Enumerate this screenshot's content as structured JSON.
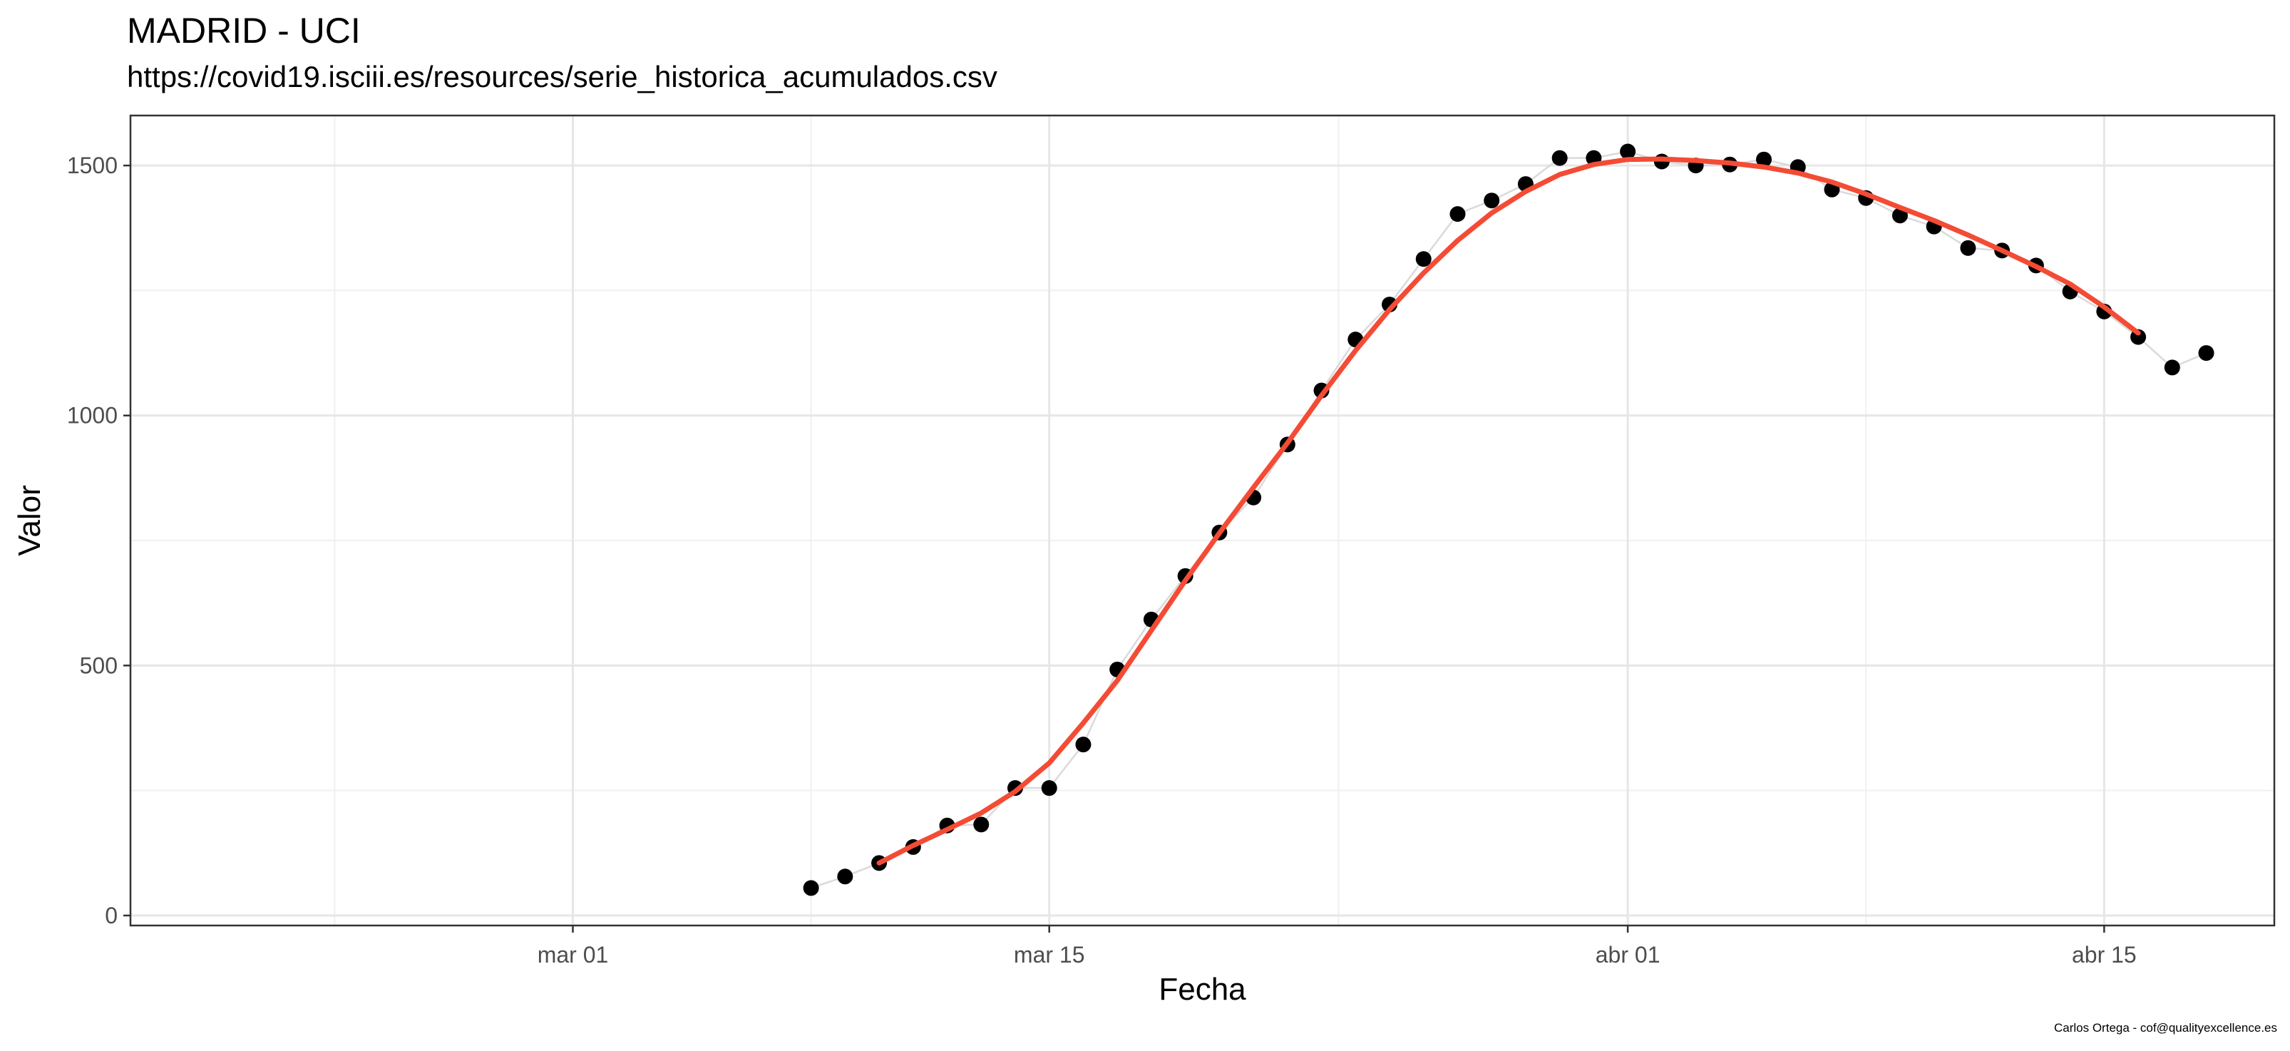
{
  "chart_data": {
    "type": "line",
    "title": "MADRID - UCI",
    "subtitle": "https://covid19.isciii.es/resources/serie_historica_acumulados.csv",
    "caption": "Carlos Ortega - cof@qualityexcellence.es",
    "xlabel": "Fecha",
    "ylabel": "Valor",
    "x_ticks": [
      {
        "date": "2020-03-01",
        "label": "mar 01"
      },
      {
        "date": "2020-03-15",
        "label": "mar 15"
      },
      {
        "date": "2020-04-01",
        "label": "abr 01"
      },
      {
        "date": "2020-04-15",
        "label": "abr 15"
      }
    ],
    "xlim": [
      "2020-02-17",
      "2020-04-20"
    ],
    "y_ticks": [
      0,
      500,
      1000,
      1500
    ],
    "ylim": [
      -20,
      1600
    ],
    "grid": true,
    "series": [
      {
        "style": "points",
        "color": "#000000",
        "x": [
          "2020-03-08",
          "2020-03-09",
          "2020-03-10",
          "2020-03-11",
          "2020-03-12",
          "2020-03-13",
          "2020-03-14",
          "2020-03-15",
          "2020-03-16",
          "2020-03-17",
          "2020-03-18",
          "2020-03-19",
          "2020-03-20",
          "2020-03-21",
          "2020-03-22",
          "2020-03-23",
          "2020-03-24",
          "2020-03-25",
          "2020-03-26",
          "2020-03-27",
          "2020-03-28",
          "2020-03-29",
          "2020-03-30",
          "2020-03-31",
          "2020-04-01",
          "2020-04-02",
          "2020-04-03",
          "2020-04-04",
          "2020-04-05",
          "2020-04-06",
          "2020-04-07",
          "2020-04-08",
          "2020-04-09",
          "2020-04-10",
          "2020-04-11",
          "2020-04-12",
          "2020-04-13",
          "2020-04-14",
          "2020-04-15",
          "2020-04-16",
          "2020-04-17",
          "2020-04-18"
        ],
        "values": [
          55,
          78,
          105,
          137,
          180,
          182,
          255,
          255,
          342,
          492,
          592,
          679,
          766,
          836,
          942,
          1050,
          1152,
          1222,
          1313,
          1403,
          1430,
          1463,
          1515,
          1515,
          1528,
          1508,
          1500,
          1502,
          1512,
          1497,
          1452,
          1435,
          1400,
          1378,
          1335,
          1330,
          1300,
          1248,
          1208,
          1157,
          1096,
          1125
        ]
      },
      {
        "style": "smooth-line",
        "color": "#f44b35",
        "x": [
          "2020-03-10",
          "2020-03-11",
          "2020-03-12",
          "2020-03-13",
          "2020-03-14",
          "2020-03-15",
          "2020-03-16",
          "2020-03-17",
          "2020-03-18",
          "2020-03-19",
          "2020-03-20",
          "2020-03-21",
          "2020-03-22",
          "2020-03-23",
          "2020-03-24",
          "2020-03-25",
          "2020-03-26",
          "2020-03-27",
          "2020-03-28",
          "2020-03-29",
          "2020-03-30",
          "2020-03-31",
          "2020-04-01",
          "2020-04-02",
          "2020-04-03",
          "2020-04-04",
          "2020-04-05",
          "2020-04-06",
          "2020-04-07",
          "2020-04-08",
          "2020-04-09",
          "2020-04-10",
          "2020-04-11",
          "2020-04-12",
          "2020-04-13",
          "2020-04-14",
          "2020-04-15",
          "2020-04-16"
        ],
        "values": [
          105,
          140,
          172,
          205,
          248,
          305,
          385,
          470,
          570,
          670,
          765,
          856,
          945,
          1040,
          1130,
          1212,
          1285,
          1350,
          1405,
          1448,
          1482,
          1502,
          1512,
          1513,
          1510,
          1505,
          1497,
          1485,
          1467,
          1443,
          1416,
          1390,
          1361,
          1330,
          1298,
          1263,
          1217,
          1165
        ]
      }
    ]
  }
}
